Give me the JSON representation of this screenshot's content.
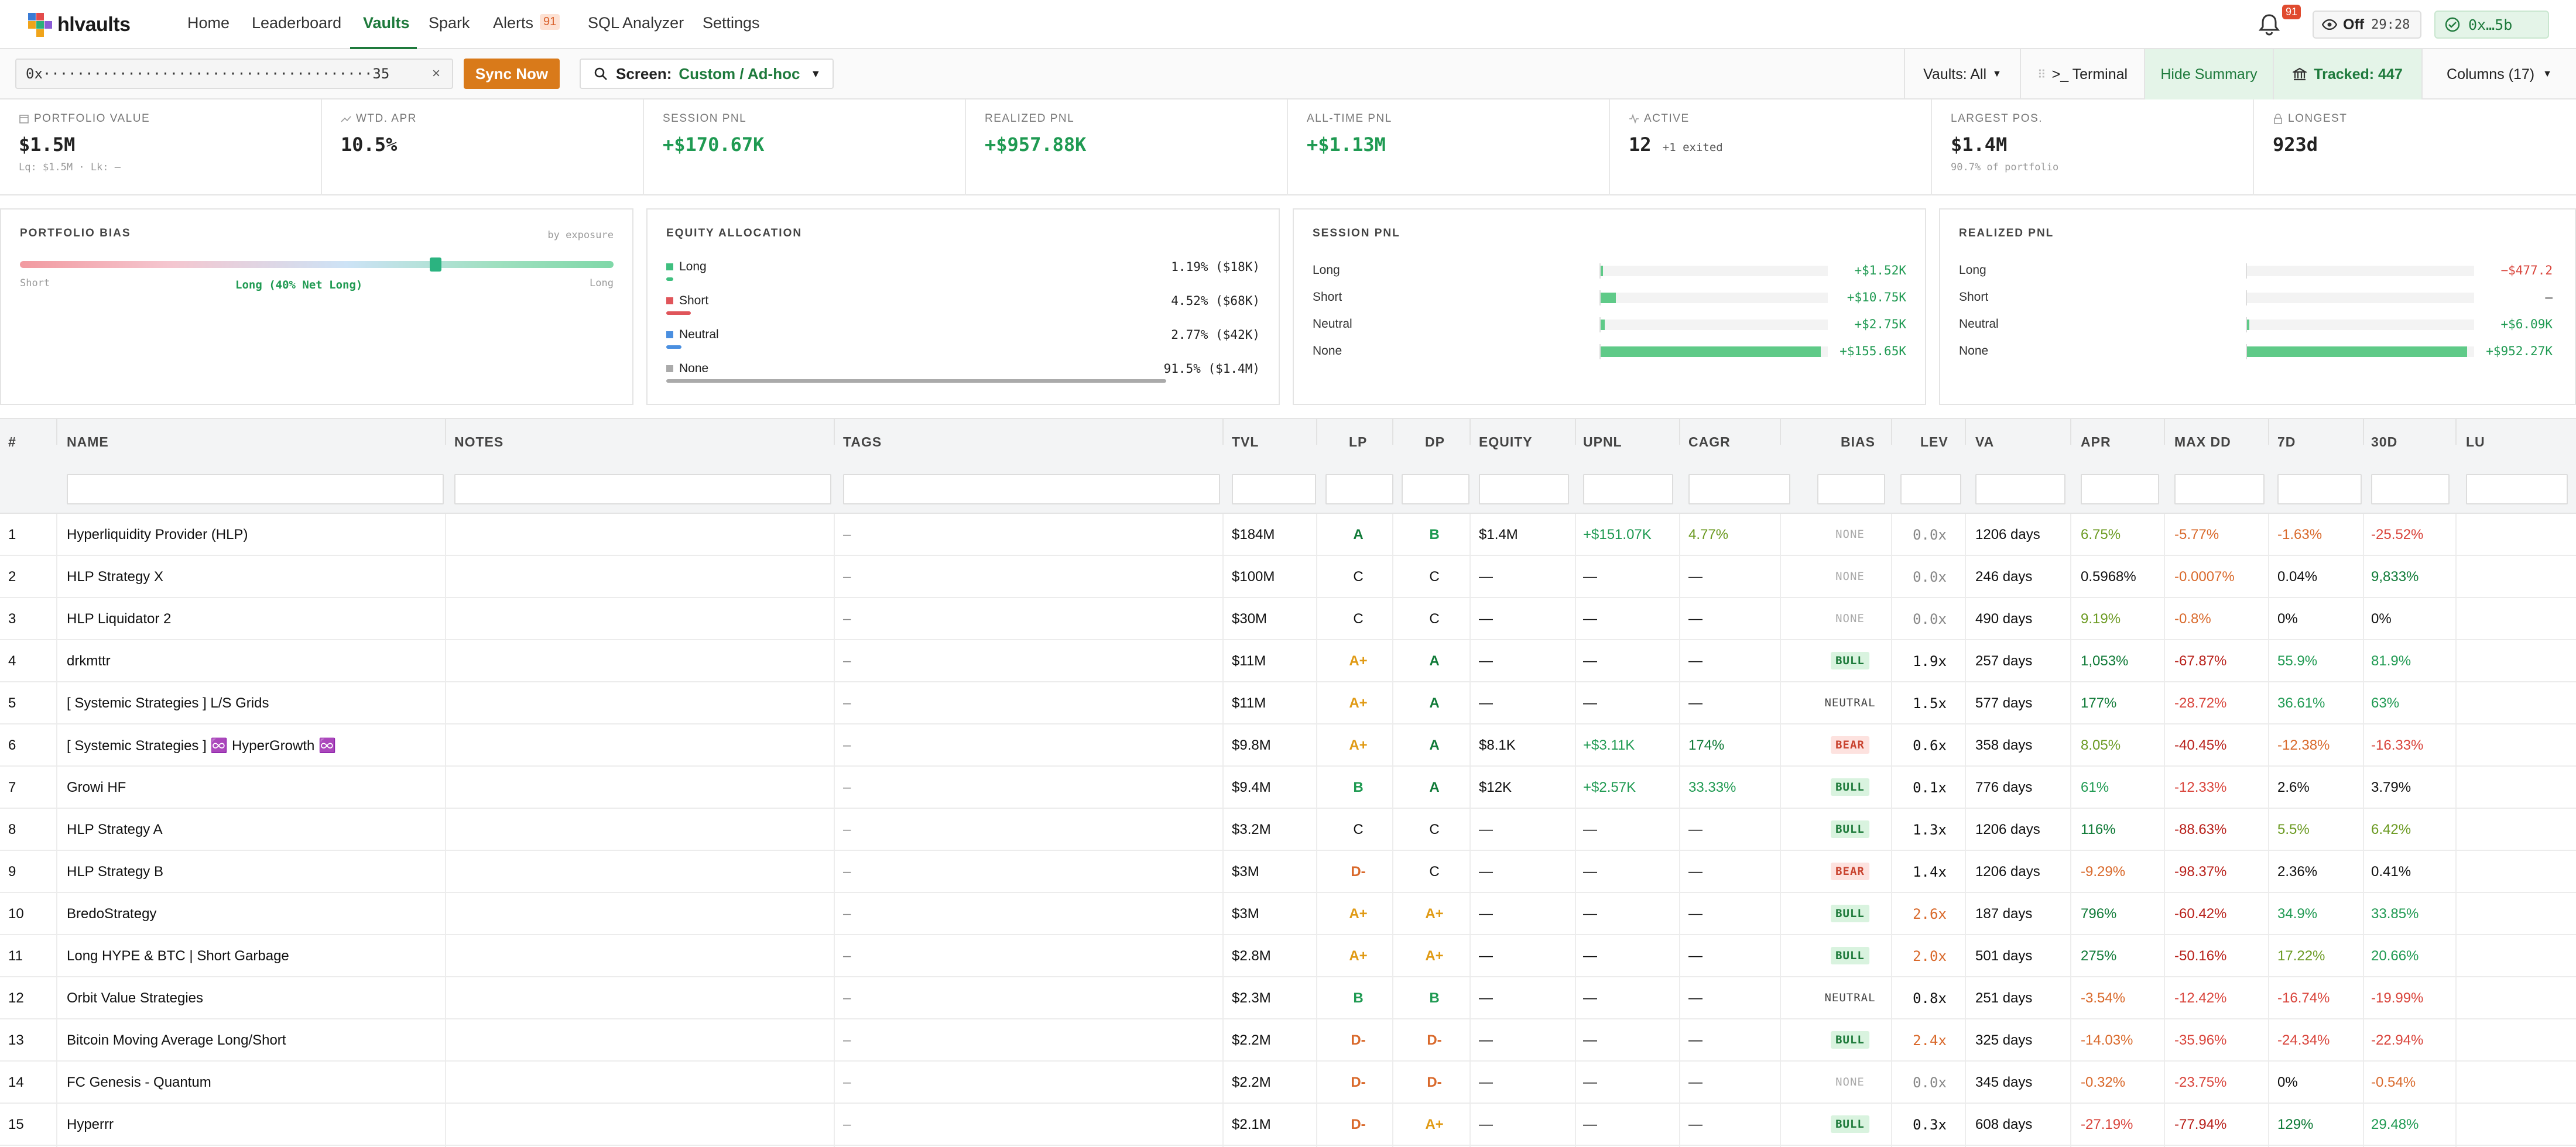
{
  "nav": {
    "brand": "hlvaults",
    "links": [
      "Home",
      "Leaderboard",
      "Vaults",
      "Spark",
      "Alerts",
      "SQL Analyzer",
      "Settings"
    ],
    "active": "Vaults",
    "alerts_badge": "91",
    "bell_badge": "91",
    "privacy_label": "Off",
    "timer": "29:28",
    "wallet": "0x…5b"
  },
  "toolbar": {
    "address_value": "0x·······································35",
    "clear_icon": "×",
    "sync_label": "Sync Now",
    "screen_label": "Screen:",
    "screen_value": "Custom / Ad-hoc",
    "vaults_filter": "Vaults: All",
    "terminal_label": ">_ Terminal",
    "hide_summary": "Hide Summary",
    "tracked": "Tracked: 447",
    "columns": "Columns (17)"
  },
  "stats": [
    {
      "label": "Portfolio Value",
      "value": "$1.5M",
      "sub": "Lq: $1.5M · Lk: –"
    },
    {
      "label": "Wtd. APR",
      "value": "10.5%",
      "sub": ""
    },
    {
      "label": "Session PnL",
      "value": "+$170.67K",
      "sub": ""
    },
    {
      "label": "Realized PnL",
      "value": "+$957.88K",
      "sub": ""
    },
    {
      "label": "All-Time PnL",
      "value": "+$1.13M",
      "sub": ""
    },
    {
      "label": "Active",
      "value": "12",
      "extra": "+1 exited",
      "sub": ""
    },
    {
      "label": "Largest Pos.",
      "value": "$1.4M",
      "sub": "90.7% of portfolio"
    },
    {
      "label": "Longest",
      "value": "923d",
      "sub": ""
    }
  ],
  "bias_panel": {
    "title": "PORTFOLIO BIAS",
    "hint": "by exposure",
    "left": "Short",
    "right": "Long",
    "center": "Long (40% Net Long)",
    "net_long_fraction": 0.7
  },
  "allocation": {
    "title": "EQUITY ALLOCATION",
    "items": [
      {
        "name": "Long",
        "pct": "1.19%",
        "amt": "($18K)",
        "fraction": 0.0119,
        "color": "#3fbf7f"
      },
      {
        "name": "Short",
        "pct": "4.52%",
        "amt": "($68K)",
        "fraction": 0.0452,
        "color": "#e0555a"
      },
      {
        "name": "Neutral",
        "pct": "2.77%",
        "amt": "($42K)",
        "fraction": 0.0277,
        "color": "#4a8fe0"
      },
      {
        "name": "None",
        "pct": "91.5%",
        "amt": "($1.4M)",
        "fraction": 0.915,
        "color": "#aaaaaa"
      }
    ]
  },
  "session_pnl": {
    "title": "SESSION PNL",
    "rows": [
      {
        "name": "Long",
        "value": "+$1.52K",
        "amount": 1.52
      },
      {
        "name": "Short",
        "value": "+$10.75K",
        "amount": 10.75
      },
      {
        "name": "Neutral",
        "value": "+$2.75K",
        "amount": 2.75
      },
      {
        "name": "None",
        "value": "+$155.65K",
        "amount": 155.65
      }
    ]
  },
  "realized_pnl": {
    "title": "REALIZED PNL",
    "rows": [
      {
        "name": "Long",
        "value": "−$477.2",
        "amount": -0.4772
      },
      {
        "name": "Short",
        "value": "–",
        "amount": 0
      },
      {
        "name": "Neutral",
        "value": "+$6.09K",
        "amount": 6.09
      },
      {
        "name": "None",
        "value": "+$952.27K",
        "amount": 952.27
      }
    ]
  },
  "table": {
    "columns": [
      "#",
      "NAME",
      "NOTES",
      "TAGS",
      "TVL",
      "LP",
      "DP",
      "EQUITY",
      "UPNL",
      "CAGR",
      "BIAS",
      "LEV",
      "VA",
      "APR",
      "MAX DD",
      "7D",
      "30D",
      "LU"
    ],
    "rows": [
      {
        "n": "1",
        "name": "Hyperliquidity Provider (HLP)",
        "tags": "–",
        "tvl": "$184M",
        "lp": "A",
        "dp": "B",
        "equity": "$1.4M",
        "upnl": "+$151.07K",
        "cagr": "4.77%",
        "bias": "NONE",
        "lev": "0.0x",
        "va": "1206 days",
        "apr": "6.75%",
        "dd": "-5.77%",
        "d7": "-1.63%",
        "d30": "-25.52%"
      },
      {
        "n": "2",
        "name": "HLP Strategy X",
        "tags": "–",
        "tvl": "$100M",
        "lp": "C",
        "dp": "C",
        "equity": "—",
        "upnl": "—",
        "cagr": "—",
        "bias": "NONE",
        "lev": "0.0x",
        "va": "246 days",
        "apr": "0.5968%",
        "dd": "-0.0007%",
        "d7": "0.04%",
        "d30": "9,833%"
      },
      {
        "n": "3",
        "name": "HLP Liquidator 2",
        "tags": "–",
        "tvl": "$30M",
        "lp": "C",
        "dp": "C",
        "equity": "—",
        "upnl": "—",
        "cagr": "—",
        "bias": "NONE",
        "lev": "0.0x",
        "va": "490 days",
        "apr": "9.19%",
        "dd": "-0.8%",
        "d7": "0%",
        "d30": "0%"
      },
      {
        "n": "4",
        "name": "drkmttr",
        "tags": "–",
        "tvl": "$11M",
        "lp": "A+",
        "dp": "A",
        "equity": "—",
        "upnl": "—",
        "cagr": "—",
        "bias": "BULL",
        "lev": "1.9x",
        "va": "257 days",
        "apr": "1,053%",
        "dd": "-67.87%",
        "d7": "55.9%",
        "d30": "81.9%"
      },
      {
        "n": "5",
        "name": "[ Systemic Strategies ] L/S Grids",
        "tags": "–",
        "tvl": "$11M",
        "lp": "A+",
        "dp": "A",
        "equity": "—",
        "upnl": "—",
        "cagr": "—",
        "bias": "NEUTRAL",
        "lev": "1.5x",
        "va": "577 days",
        "apr": "177%",
        "dd": "-28.72%",
        "d7": "36.61%",
        "d30": "63%"
      },
      {
        "n": "6",
        "name": "[ Systemic Strategies ] ♾️ HyperGrowth ♾️",
        "tags": "–",
        "tvl": "$9.8M",
        "lp": "A+",
        "dp": "A",
        "equity": "$8.1K",
        "upnl": "+$3.11K",
        "cagr": "174%",
        "bias": "BEAR",
        "lev": "0.6x",
        "va": "358 days",
        "apr": "8.05%",
        "dd": "-40.45%",
        "d7": "-12.38%",
        "d30": "-16.33%"
      },
      {
        "n": "7",
        "name": "Growi HF",
        "tags": "–",
        "tvl": "$9.4M",
        "lp": "B",
        "dp": "A",
        "equity": "$12K",
        "upnl": "+$2.57K",
        "cagr": "33.33%",
        "bias": "BULL",
        "lev": "0.1x",
        "va": "776 days",
        "apr": "61%",
        "dd": "-12.33%",
        "d7": "2.6%",
        "d30": "3.79%"
      },
      {
        "n": "8",
        "name": "HLP Strategy A",
        "tags": "–",
        "tvl": "$3.2M",
        "lp": "C",
        "dp": "C",
        "equity": "—",
        "upnl": "—",
        "cagr": "—",
        "bias": "BULL",
        "lev": "1.3x",
        "va": "1206 days",
        "apr": "116%",
        "dd": "-88.63%",
        "d7": "5.5%",
        "d30": "6.42%"
      },
      {
        "n": "9",
        "name": "HLP Strategy B",
        "tags": "–",
        "tvl": "$3M",
        "lp": "D-",
        "dp": "C",
        "equity": "—",
        "upnl": "—",
        "cagr": "—",
        "bias": "BEAR",
        "lev": "1.4x",
        "va": "1206 days",
        "apr": "-9.29%",
        "dd": "-98.37%",
        "d7": "2.36%",
        "d30": "0.41%"
      },
      {
        "n": "10",
        "name": "BredoStrategy",
        "tags": "–",
        "tvl": "$3M",
        "lp": "A+",
        "dp": "A+",
        "equity": "—",
        "upnl": "—",
        "cagr": "—",
        "bias": "BULL",
        "lev": "2.6x",
        "va": "187 days",
        "apr": "796%",
        "dd": "-60.42%",
        "d7": "34.9%",
        "d30": "33.85%"
      },
      {
        "n": "11",
        "name": "Long HYPE & BTC | Short Garbage",
        "tags": "–",
        "tvl": "$2.8M",
        "lp": "A+",
        "dp": "A+",
        "equity": "—",
        "upnl": "—",
        "cagr": "—",
        "bias": "BULL",
        "lev": "2.0x",
        "va": "501 days",
        "apr": "275%",
        "dd": "-50.16%",
        "d7": "17.22%",
        "d30": "20.66%"
      },
      {
        "n": "12",
        "name": "Orbit Value Strategies",
        "tags": "–",
        "tvl": "$2.3M",
        "lp": "B",
        "dp": "B",
        "equity": "—",
        "upnl": "—",
        "cagr": "—",
        "bias": "NEUTRAL",
        "lev": "0.8x",
        "va": "251 days",
        "apr": "-3.54%",
        "dd": "-12.42%",
        "d7": "-16.74%",
        "d30": "-19.99%"
      },
      {
        "n": "13",
        "name": "Bitcoin Moving Average Long/Short",
        "tags": "–",
        "tvl": "$2.2M",
        "lp": "D-",
        "dp": "D-",
        "equity": "—",
        "upnl": "—",
        "cagr": "—",
        "bias": "BULL",
        "lev": "2.4x",
        "va": "325 days",
        "apr": "-14.03%",
        "dd": "-35.96%",
        "d7": "-24.34%",
        "d30": "-22.94%"
      },
      {
        "n": "14",
        "name": "FC Genesis - Quantum",
        "tags": "–",
        "tvl": "$2.2M",
        "lp": "D-",
        "dp": "D-",
        "equity": "—",
        "upnl": "—",
        "cagr": "—",
        "bias": "NONE",
        "lev": "0.0x",
        "va": "345 days",
        "apr": "-0.32%",
        "dd": "-23.75%",
        "d7": "0%",
        "d30": "-0.54%"
      },
      {
        "n": "15",
        "name": "Hyperrr",
        "tags": "–",
        "tvl": "$2.1M",
        "lp": "D-",
        "dp": "A+",
        "equity": "—",
        "upnl": "—",
        "cagr": "—",
        "bias": "BULL",
        "lev": "0.3x",
        "va": "608 days",
        "apr": "-27.19%",
        "dd": "-77.94%",
        "d7": "129%",
        "d30": "29.48%"
      }
    ]
  }
}
